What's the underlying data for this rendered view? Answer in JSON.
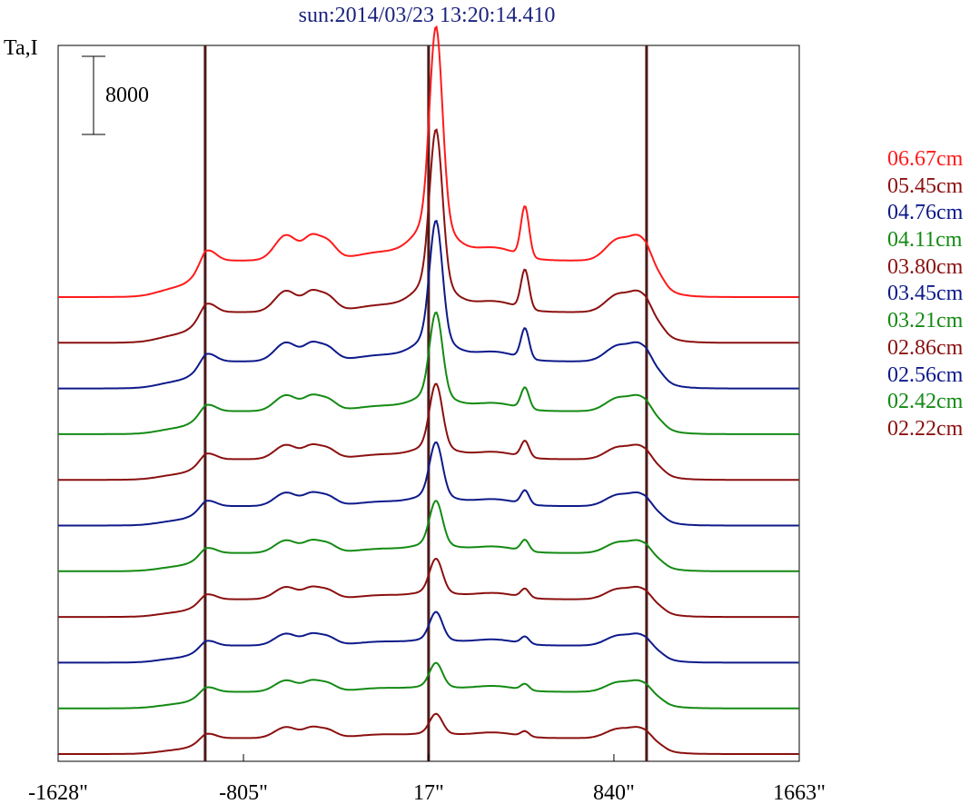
{
  "chart_data": {
    "type": "line",
    "title": "sun:2014/03/23 13:20:14.410",
    "ylabel": "Ta,I",
    "xlabel": "",
    "x_tick_labels": [
      "-1628\"",
      "-805\"",
      "17\"",
      "840\"",
      "1663\""
    ],
    "x_ticks": [
      -1628,
      -805,
      17,
      840,
      1663
    ],
    "xlim": [
      -1628,
      1663
    ],
    "vertical_lines_x": [
      -975,
      17,
      985
    ],
    "scale_bar": {
      "value": 8000,
      "label": "8000"
    },
    "plot_style": "stacked offset profiles, one per wavelength",
    "series": [
      {
        "name": "06.67cm",
        "color": "#ff1a1a",
        "offset": 10,
        "peak_scale": 1.0,
        "disk_scale": 0.62
      },
      {
        "name": "05.45cm",
        "color": "#8b1010",
        "offset": 9,
        "peak_scale": 0.78,
        "disk_scale": 0.52
      },
      {
        "name": "04.76cm",
        "color": "#0d1a8a",
        "offset": 8,
        "peak_scale": 0.6,
        "disk_scale": 0.46
      },
      {
        "name": "04.11cm",
        "color": "#138a13",
        "offset": 7,
        "peak_scale": 0.42,
        "disk_scale": 0.39
      },
      {
        "name": "03.80cm",
        "color": "#8b1010",
        "offset": 6,
        "peak_scale": 0.32,
        "disk_scale": 0.35
      },
      {
        "name": "03.45cm",
        "color": "#0d1a8a",
        "offset": 5,
        "peak_scale": 0.27,
        "disk_scale": 0.33
      },
      {
        "name": "03.21cm",
        "color": "#138a13",
        "offset": 4,
        "peak_scale": 0.22,
        "disk_scale": 0.31
      },
      {
        "name": "02.86cm",
        "color": "#8b1010",
        "offset": 3,
        "peak_scale": 0.17,
        "disk_scale": 0.3
      },
      {
        "name": "02.56cm",
        "color": "#0d1a8a",
        "offset": 2,
        "peak_scale": 0.14,
        "disk_scale": 0.29
      },
      {
        "name": "02.42cm",
        "color": "#138a13",
        "offset": 1,
        "peak_scale": 0.12,
        "disk_scale": 0.28
      },
      {
        "name": "02.22cm",
        "color": "#8b1010",
        "offset": 0,
        "peak_scale": 0.1,
        "disk_scale": 0.27
      }
    ]
  }
}
